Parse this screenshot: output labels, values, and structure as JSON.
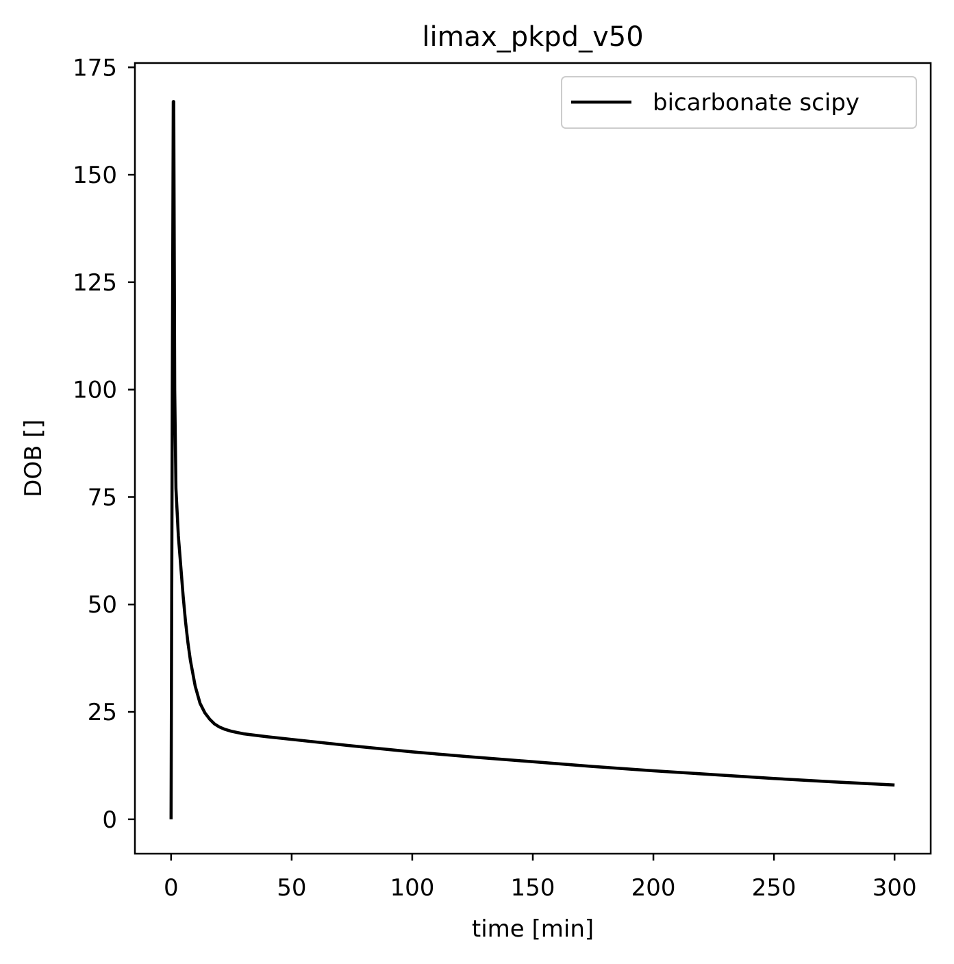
{
  "chart_data": {
    "type": "line",
    "title": "limax_pkpd_v50",
    "xlabel": "time [min]",
    "ylabel": "DOB []",
    "xlim": [
      -15,
      315
    ],
    "ylim": [
      -8,
      176
    ],
    "xticks": [
      0,
      50,
      100,
      150,
      200,
      250,
      300
    ],
    "yticks": [
      0,
      25,
      50,
      75,
      100,
      125,
      150,
      175
    ],
    "xtick_labels": [
      "0",
      "50",
      "100",
      "150",
      "200",
      "250",
      "300"
    ],
    "ytick_labels": [
      "0",
      "25",
      "50",
      "75",
      "100",
      "125",
      "150",
      "175"
    ],
    "grid": false,
    "legend": "top-right",
    "series": [
      {
        "name": "bicarbonate scipy",
        "color": "#000000",
        "x": [
          0,
          0.5,
          0.9,
          1.1,
          1.5,
          2,
          3,
          4,
          5,
          6,
          7,
          8,
          10,
          12,
          14,
          16,
          18,
          20,
          22,
          25,
          30,
          40,
          50,
          75,
          100,
          125,
          150,
          175,
          200,
          225,
          250,
          275,
          300
        ],
        "y": [
          0,
          100,
          167,
          167,
          100,
          77,
          66,
          59,
          52,
          46,
          41,
          37,
          31,
          27,
          24.8,
          23.3,
          22.2,
          21.5,
          21,
          20.5,
          19.9,
          19.2,
          18.6,
          17.1,
          15.7,
          14.5,
          13.4,
          12.3,
          11.3,
          10.4,
          9.5,
          8.7,
          8
        ]
      }
    ]
  }
}
